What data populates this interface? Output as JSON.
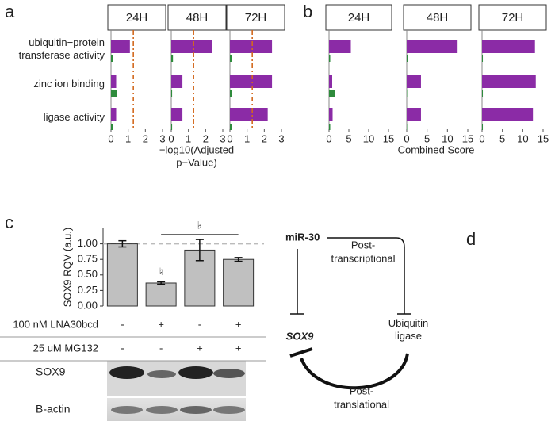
{
  "panels": [
    "a",
    "b",
    "c",
    "d"
  ],
  "chart_data": [
    {
      "type": "facet-bar",
      "categories": [
        "ubiquitin−protein transferase activity",
        "zinc ion binding",
        "ligase activity"
      ],
      "xlabel": [
        "−log10(Adjusted",
        "p−Value)"
      ],
      "xlim": [
        0,
        3
      ],
      "xticks": [
        0,
        1,
        2,
        3
      ],
      "threshold": 1.3,
      "threshold_color": "#d2691e",
      "facets": [
        {
          "name": "24H",
          "series": [
            {
              "color": "#8b2ba6",
              "values": [
                1.1,
                0.3,
                0.3
              ]
            },
            {
              "color": "#2e8b3c",
              "values": [
                0.1,
                0.35,
                0.12
              ]
            }
          ]
        },
        {
          "name": "48H",
          "series": [
            {
              "color": "#8b2ba6",
              "values": [
                2.4,
                0.65,
                0.65
              ]
            },
            {
              "color": "#2e8b3c",
              "values": [
                0.1,
                0.05,
                0.05
              ]
            }
          ]
        },
        {
          "name": "72H",
          "series": [
            {
              "color": "#8b2ba6",
              "values": [
                2.45,
                2.45,
                2.2
              ]
            },
            {
              "color": "#2e8b3c",
              "values": [
                0.1,
                0.1,
                0.1
              ]
            }
          ]
        }
      ]
    },
    {
      "type": "facet-bar",
      "xlabel": [
        "Combined Score"
      ],
      "xlim": [
        0,
        15
      ],
      "xticks": [
        0,
        5,
        10,
        15
      ],
      "facets": [
        {
          "name": "24H",
          "series": [
            {
              "color": "#8b2ba6",
              "values": [
                5.5,
                0.8,
                0.9
              ]
            },
            {
              "color": "#2e8b3c",
              "values": [
                0.3,
                1.6,
                0.3
              ]
            }
          ]
        },
        {
          "name": "48H",
          "series": [
            {
              "color": "#8b2ba6",
              "values": [
                12.5,
                3.5,
                3.5
              ]
            },
            {
              "color": "#2e8b3c",
              "values": [
                0.2,
                0.1,
                0.1
              ]
            }
          ]
        },
        {
          "name": "72H",
          "series": [
            {
              "color": "#8b2ba6",
              "values": [
                13,
                13.2,
                12.5
              ]
            },
            {
              "color": "#2e8b3c",
              "values": [
                0.2,
                0.2,
                0.2
              ]
            }
          ]
        }
      ]
    },
    {
      "type": "bar",
      "ylabel": "SOX9 RQV (a.u.)",
      "ylim": [
        0,
        1.25
      ],
      "yticks": [
        {
          "value": 0,
          "label": "0.00"
        },
        {
          "value": 0.25,
          "label": "0.25"
        },
        {
          "value": 0.5,
          "label": "0.50"
        },
        {
          "value": 0.75,
          "label": "0.75"
        },
        {
          "value": 1,
          "label": "1.00"
        }
      ],
      "values": [
        1.0,
        0.37,
        0.9,
        0.75
      ],
      "errors": [
        0.05,
        0.02,
        0.17,
        0.03
      ],
      "color": "#c0c0c0",
      "reference_line": 1,
      "annotations": [
        "♮",
        "♭"
      ],
      "conditions": [
        {
          "label": "100 nM LNA30bcd",
          "values": [
            "-",
            "+",
            "-",
            "+"
          ]
        },
        {
          "label": "25 uM MG132",
          "values": [
            "-",
            "-",
            "+",
            "+"
          ]
        }
      ],
      "blots": [
        "SOX9",
        "B-actin"
      ]
    }
  ],
  "diagram": {
    "nodes": [
      "miR-30",
      "SOX9",
      "Ubiquitin ligase"
    ],
    "labels": [
      [
        "Post-",
        "transcriptional"
      ],
      [
        "Post-",
        "translational"
      ]
    ]
  }
}
